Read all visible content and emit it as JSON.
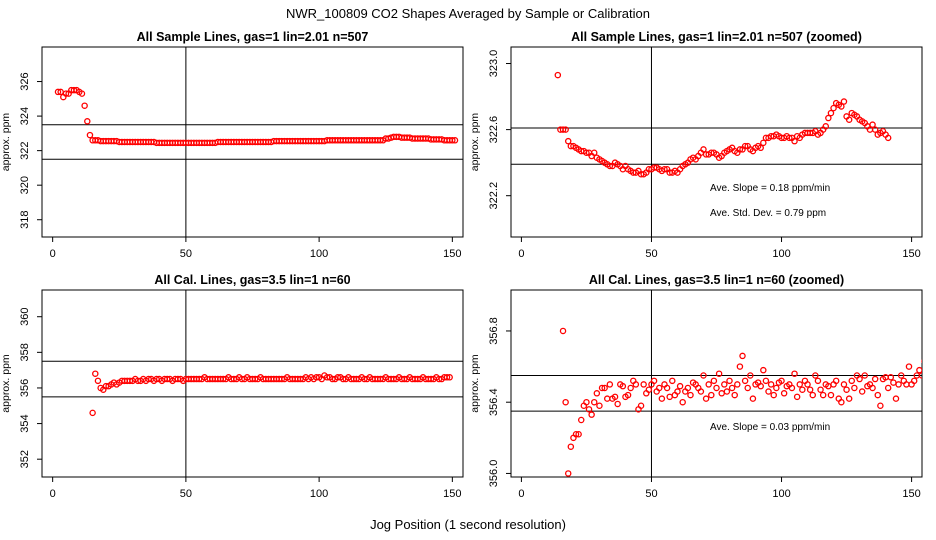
{
  "figure": {
    "title": "NWR_100809  CO2 Shapes Averaged by Sample or Calibration",
    "xlabel": "Jog Position (1 second resolution)"
  },
  "chart_data": [
    {
      "id": "p1",
      "type": "scatter",
      "title": "All Sample Lines, gas=1 lin=2.01 n=507",
      "ylabel": "approx. ppm",
      "xlim": [
        -4,
        154
      ],
      "ylim": [
        317,
        328
      ],
      "xticks": [
        0,
        50,
        100,
        150
      ],
      "yticks": [
        318,
        320,
        322,
        324,
        326
      ],
      "marker_color": "#ff0000",
      "hlines": [
        323.5,
        321.5
      ],
      "vline": 50,
      "annotations": [],
      "points": {
        "x_start": 2,
        "y": [
          325.4,
          325.4,
          325.1,
          325.3,
          325.3,
          325.5,
          325.5,
          325.5,
          325.4,
          325.3,
          324.6,
          323.7,
          322.9,
          322.6,
          322.6,
          322.6,
          322.55,
          322.55,
          322.55,
          322.55,
          322.55,
          322.55,
          322.55,
          322.5,
          322.5,
          322.5,
          322.5,
          322.5,
          322.5,
          322.5,
          322.5,
          322.5,
          322.5,
          322.5,
          322.5,
          322.5,
          322.5,
          322.45,
          322.45,
          322.45,
          322.45,
          322.45,
          322.45,
          322.45,
          322.45,
          322.45,
          322.45,
          322.45,
          322.45,
          322.45,
          322.45,
          322.45,
          322.45,
          322.45,
          322.45,
          322.45,
          322.45,
          322.45,
          322.45,
          322.45,
          322.5,
          322.5,
          322.5,
          322.5,
          322.5,
          322.5,
          322.5,
          322.5,
          322.5,
          322.5,
          322.5,
          322.5,
          322.5,
          322.5,
          322.5,
          322.5,
          322.5,
          322.5,
          322.5,
          322.5,
          322.5,
          322.55,
          322.55,
          322.55,
          322.55,
          322.55,
          322.55,
          322.55,
          322.55,
          322.55,
          322.55,
          322.55,
          322.55,
          322.55,
          322.55,
          322.55,
          322.55,
          322.55,
          322.55,
          322.55,
          322.55,
          322.6,
          322.6,
          322.6,
          322.6,
          322.6,
          322.6,
          322.6,
          322.6,
          322.6,
          322.6,
          322.6,
          322.6,
          322.6,
          322.6,
          322.6,
          322.6,
          322.6,
          322.6,
          322.6,
          322.6,
          322.6,
          322.6,
          322.7,
          322.7,
          322.75,
          322.8,
          322.8,
          322.8,
          322.75,
          322.75,
          322.75,
          322.75,
          322.7,
          322.7,
          322.7,
          322.7,
          322.7,
          322.7,
          322.7,
          322.65,
          322.65,
          322.65,
          322.65,
          322.65,
          322.6,
          322.6,
          322.6,
          322.6,
          322.6
        ]
      }
    },
    {
      "id": "p2",
      "type": "scatter",
      "title": "All Sample Lines, gas=1 lin=2.01 n=507 (zoomed)",
      "ylabel": "approx. ppm",
      "xlim": [
        -4,
        154
      ],
      "ylim": [
        321.95,
        323.1
      ],
      "xticks": [
        0,
        50,
        100,
        150
      ],
      "yticks": [
        322.2,
        322.6,
        323.0
      ],
      "ytick_labels": [
        "322.2",
        "322.6",
        "323.0"
      ],
      "marker_color": "#ff0000",
      "hlines": [
        322.61,
        322.39
      ],
      "vline": 50,
      "annotations": [
        "Ave. Slope =  0.18  ppm/min",
        "Ave. Std. Dev. =  0.79  ppm"
      ],
      "points": {
        "x_start": 14,
        "y": [
          322.93,
          322.6,
          322.6,
          322.6,
          322.53,
          322.5,
          322.5,
          322.49,
          322.48,
          322.47,
          322.47,
          322.46,
          322.46,
          322.44,
          322.46,
          322.43,
          322.42,
          322.41,
          322.4,
          322.39,
          322.38,
          322.38,
          322.4,
          322.39,
          322.38,
          322.36,
          322.38,
          322.36,
          322.35,
          322.34,
          322.34,
          322.35,
          322.33,
          322.33,
          322.34,
          322.36,
          322.36,
          322.37,
          322.37,
          322.36,
          322.35,
          322.36,
          322.36,
          322.34,
          322.34,
          322.35,
          322.34,
          322.36,
          322.38,
          322.39,
          322.4,
          322.42,
          322.43,
          322.42,
          322.44,
          322.46,
          322.48,
          322.45,
          322.45,
          322.46,
          322.46,
          322.45,
          322.43,
          322.44,
          322.46,
          322.47,
          322.48,
          322.49,
          322.47,
          322.46,
          322.48,
          322.48,
          322.5,
          322.5,
          322.48,
          322.47,
          322.49,
          322.5,
          322.49,
          322.52,
          322.55,
          322.55,
          322.56,
          322.56,
          322.57,
          322.56,
          322.55,
          322.55,
          322.56,
          322.55,
          322.55,
          322.53,
          322.56,
          322.55,
          322.57,
          322.58,
          322.58,
          322.58,
          322.58,
          322.59,
          322.57,
          322.58,
          322.6,
          322.62,
          322.67,
          322.7,
          322.73,
          322.76,
          322.75,
          322.74,
          322.77,
          322.68,
          322.66,
          322.7,
          322.69,
          322.68,
          322.66,
          322.65,
          322.64,
          322.62,
          322.6,
          322.63,
          322.6,
          322.57,
          322.58,
          322.59,
          322.57,
          322.55
        ]
      }
    },
    {
      "id": "p3",
      "type": "scatter",
      "title": "All Cal. Lines, gas=3.5 lin=1 n=60",
      "ylabel": "approx. ppm",
      "xlim": [
        -4,
        154
      ],
      "ylim": [
        351,
        361.5
      ],
      "xticks": [
        0,
        50,
        100,
        150
      ],
      "yticks": [
        352,
        354,
        356,
        358,
        360
      ],
      "marker_color": "#ff0000",
      "hlines": [
        357.5,
        355.5
      ],
      "vline": 50,
      "annotations": [],
      "points": {
        "x_start": 15,
        "y": [
          354.6,
          356.8,
          356.4,
          356.0,
          355.9,
          356.1,
          356.1,
          356.2,
          356.3,
          356.2,
          356.3,
          356.4,
          356.4,
          356.4,
          356.4,
          356.4,
          356.5,
          356.4,
          356.4,
          356.5,
          356.4,
          356.5,
          356.5,
          356.4,
          356.5,
          356.5,
          356.4,
          356.5,
          356.5,
          356.5,
          356.4,
          356.5,
          356.5,
          356.5,
          356.4,
          356.5,
          356.5,
          356.5,
          356.5,
          356.5,
          356.5,
          356.5,
          356.6,
          356.5,
          356.5,
          356.5,
          356.5,
          356.5,
          356.5,
          356.5,
          356.5,
          356.6,
          356.5,
          356.5,
          356.5,
          356.6,
          356.5,
          356.5,
          356.6,
          356.5,
          356.5,
          356.5,
          356.5,
          356.6,
          356.5,
          356.5,
          356.5,
          356.5,
          356.5,
          356.5,
          356.5,
          356.5,
          356.5,
          356.6,
          356.5,
          356.5,
          356.5,
          356.5,
          356.5,
          356.5,
          356.6,
          356.5,
          356.6,
          356.5,
          356.6,
          356.6,
          356.5,
          356.7,
          356.6,
          356.6,
          356.5,
          356.5,
          356.6,
          356.6,
          356.5,
          356.5,
          356.6,
          356.5,
          356.5,
          356.5,
          356.5,
          356.6,
          356.5,
          356.5,
          356.6,
          356.5,
          356.5,
          356.5,
          356.5,
          356.5,
          356.6,
          356.5,
          356.5,
          356.5,
          356.5,
          356.6,
          356.5,
          356.5,
          356.5,
          356.6,
          356.5,
          356.5,
          356.5,
          356.5,
          356.6,
          356.5,
          356.5,
          356.5,
          356.5,
          356.6,
          356.5,
          356.5,
          356.6,
          356.6,
          356.6
        ]
      }
    },
    {
      "id": "p4",
      "type": "scatter",
      "title": "All Cal. Lines, gas=3.5 lin=1 n=60 (zoomed)",
      "ylabel": "approx. ppm",
      "xlim": [
        -4,
        154
      ],
      "ylim": [
        355.98,
        357.03
      ],
      "xticks": [
        0,
        50,
        100,
        150
      ],
      "yticks": [
        356.0,
        356.4,
        356.8
      ],
      "ytick_labels": [
        "356.0",
        "356.4",
        "356.8"
      ],
      "marker_color": "#ff0000",
      "hlines": [
        356.55,
        356.35
      ],
      "vline": 50,
      "annotations": [
        "Ave. Slope =  0.03  ppm/min"
      ],
      "points": {
        "x_start": 16,
        "y": [
          356.8,
          356.4,
          356.0,
          356.15,
          356.2,
          356.22,
          356.22,
          356.3,
          356.38,
          356.4,
          356.36,
          356.33,
          356.4,
          356.45,
          356.38,
          356.48,
          356.48,
          356.42,
          356.5,
          356.42,
          356.43,
          356.39,
          356.5,
          356.49,
          356.43,
          356.44,
          356.48,
          356.52,
          356.5,
          356.36,
          356.38,
          356.5,
          356.45,
          356.47,
          356.5,
          356.52,
          356.46,
          356.48,
          356.42,
          356.5,
          356.48,
          356.43,
          356.52,
          356.44,
          356.46,
          356.49,
          356.4,
          356.46,
          356.48,
          356.44,
          356.51,
          356.5,
          356.48,
          356.46,
          356.55,
          356.42,
          356.5,
          356.44,
          356.52,
          356.48,
          356.56,
          356.45,
          356.5,
          356.46,
          356.52,
          356.48,
          356.44,
          356.5,
          356.6,
          356.66,
          356.52,
          356.48,
          356.55,
          356.42,
          356.5,
          356.51,
          356.49,
          356.58,
          356.52,
          356.46,
          356.5,
          356.44,
          356.48,
          356.51,
          356.52,
          356.45,
          356.49,
          356.5,
          356.48,
          356.56,
          356.43,
          356.5,
          356.47,
          356.52,
          356.5,
          356.47,
          356.44,
          356.55,
          356.52,
          356.47,
          356.44,
          356.5,
          356.49,
          356.44,
          356.5,
          356.52,
          356.42,
          356.4,
          356.5,
          356.47,
          356.42,
          356.52,
          356.48,
          356.55,
          356.53,
          356.46,
          356.55,
          356.49,
          356.5,
          356.48,
          356.53,
          356.44,
          356.38,
          356.53,
          356.54,
          356.48,
          356.54,
          356.51,
          356.42,
          356.5,
          356.55,
          356.52,
          356.5,
          356.6,
          356.5,
          356.52,
          356.55,
          356.58,
          356.55,
          356.63
        ]
      }
    }
  ]
}
